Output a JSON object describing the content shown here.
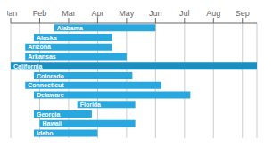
{
  "chart_data": {
    "type": "bar",
    "orientation": "horizontal",
    "categories": [
      "Alabama",
      "Alaska",
      "Arizona",
      "Arkansas",
      "California",
      "Colorado",
      "Connecticut",
      "Delaware",
      "Florida",
      "Georgia",
      "Hawaii",
      "Idaho"
    ],
    "values": [
      [
        2.5,
        6.0
      ],
      [
        1.8,
        4.5
      ],
      [
        1.5,
        4.5
      ],
      [
        1.5,
        5.0
      ],
      [
        1.0,
        9.5
      ],
      [
        1.8,
        5.2
      ],
      [
        1.5,
        6.2
      ],
      [
        1.8,
        7.2
      ],
      [
        3.3,
        5.3
      ],
      [
        1.8,
        3.8
      ],
      [
        2.0,
        5.3
      ],
      [
        1.8,
        4.0
      ]
    ],
    "colors": [
      "#29a8e0",
      "#29a8e0",
      "#29a8e0",
      "#29a8e0",
      "#1a8fc0",
      "#29a8e0",
      "#29a8e0",
      "#29a8e0",
      "#29a8e0",
      "#29a8e0",
      "#29a8e0",
      "#29a8e0"
    ],
    "xlim": [
      1,
      9.5
    ],
    "xticks": [
      {
        "value": 1,
        "label": "Jan"
      },
      {
        "value": 2,
        "label": "Feb"
      },
      {
        "value": 3,
        "label": "Mar"
      },
      {
        "value": 4,
        "label": "Apr"
      },
      {
        "value": 5,
        "label": "May"
      },
      {
        "value": 6,
        "label": "Jun"
      },
      {
        "value": 7,
        "label": "Jul"
      },
      {
        "value": 8,
        "label": "Aug"
      },
      {
        "value": 9,
        "label": "Sep"
      }
    ],
    "grid": true
  }
}
